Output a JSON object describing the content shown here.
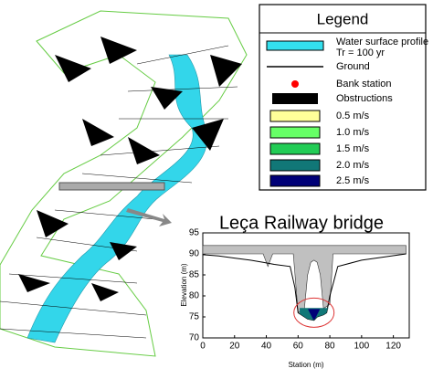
{
  "legend": {
    "title": "Legend",
    "items": [
      {
        "label": "Water surface profile",
        "sublabel": "Tr = 100 yr",
        "symbol": "band",
        "color": "#33e0ee"
      },
      {
        "label": "Ground",
        "symbol": "line",
        "color": "#000000"
      },
      {
        "label": "Bank station",
        "symbol": "dot",
        "color": "#ff0000"
      },
      {
        "label": "Obstructions",
        "symbol": "block",
        "color": "#000000"
      },
      {
        "label": "0.5 m/s",
        "symbol": "box",
        "color": "#ffff99"
      },
      {
        "label": "1.0 m/s",
        "symbol": "box",
        "color": "#66ff66"
      },
      {
        "label": "1.5 m/s",
        "symbol": "box",
        "color": "#22cc55"
      },
      {
        "label": "2.0 m/s",
        "symbol": "box",
        "color": "#117777"
      },
      {
        "label": "2.5 m/s",
        "symbol": "box",
        "color": "#000077"
      }
    ]
  },
  "chart_data": {
    "type": "cross-section",
    "title": "Leça Railway bridge",
    "x_label": "Station (m)",
    "y_label": "Elevation (m)",
    "xlim": [
      0,
      130
    ],
    "ylim": [
      70,
      95
    ],
    "xticks": [
      0,
      20,
      40,
      60,
      80,
      100,
      120
    ],
    "yticks": [
      70,
      75,
      80,
      85,
      90,
      95
    ],
    "series": [
      {
        "name": "Obstructions",
        "color": "#c0c0c0",
        "x": [
          0,
          128,
          128,
          82,
          80,
          76,
          74,
          72,
          70,
          68,
          66,
          64,
          60,
          57,
          44,
          41,
          38,
          0
        ],
        "values": [
          92,
          92,
          90,
          90,
          78,
          77,
          85,
          88,
          88.5,
          88,
          85,
          77,
          76,
          90,
          90,
          87,
          90,
          90
        ]
      },
      {
        "name": "Ground",
        "color": "#000000",
        "x": [
          0,
          10,
          20,
          30,
          38,
          45,
          55,
          58,
          60,
          62,
          66,
          70,
          72,
          76,
          78,
          80,
          85,
          100,
          128
        ],
        "values": [
          89.8,
          89.5,
          89,
          88.5,
          88,
          87.5,
          87,
          82,
          76,
          75.5,
          74.5,
          74.2,
          75,
          75.5,
          76,
          80,
          87,
          88.5,
          90
        ]
      },
      {
        "name": "Water surface profile",
        "color": "#117777",
        "x": [
          61,
          79
        ],
        "values": [
          77,
          77
        ]
      }
    ]
  }
}
